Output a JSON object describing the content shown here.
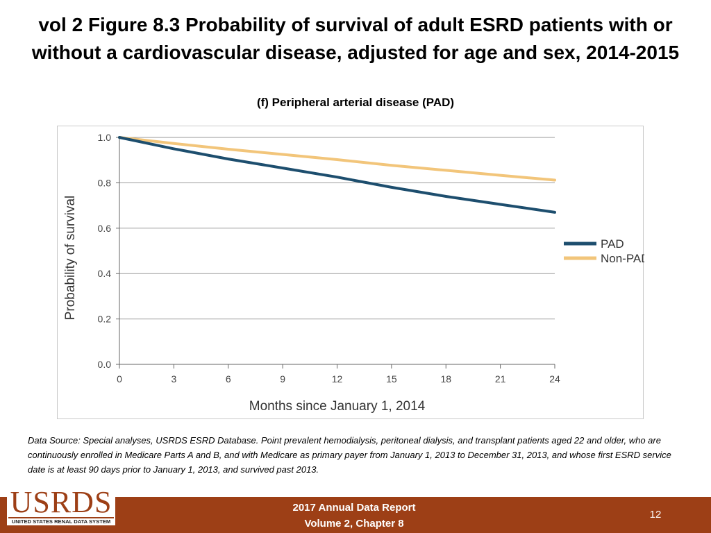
{
  "slide": {
    "title_line1": "vol 2 Figure 8.3 Probability of survival of adult ESRD patients with or",
    "title_line2": "without a cardiovascular disease, adjusted for age and sex, 2014-2015",
    "footnote": "Data Source: Special analyses, USRDS ESRD Database. Point prevalent hemodialysis, peritoneal dialysis, and transplant patients aged 22 and older, who are continuously enrolled in Medicare Parts A and B, and with Medicare as primary payer from January 1, 2013 to December 31, 2013, and whose first ESRD service date is at least 90 days prior to January 1, 2013, and survived past 2013."
  },
  "footer": {
    "logo_text": "USRDS",
    "logo_subtext": "UNITED STATES RENAL DATA SYSTEM",
    "report_line1": "2017 Annual Data Report",
    "report_line2": "Volume 2, Chapter 8",
    "page_number": "12",
    "band_color": "#9d3f16"
  },
  "chart_data": {
    "type": "line",
    "title": "(f) Peripheral arterial disease (PAD)",
    "xlabel": "Months since January 1, 2014",
    "ylabel": "Probability of survival",
    "xlim": [
      0,
      24
    ],
    "ylim": [
      0,
      1.0
    ],
    "x_ticks": [
      0,
      3,
      6,
      9,
      12,
      15,
      18,
      21,
      24
    ],
    "x_tick_labels": [
      "0",
      "3",
      "6",
      "9",
      "12",
      "15",
      "18",
      "21",
      "24"
    ],
    "y_ticks": [
      0,
      0.2,
      0.4,
      0.6,
      0.8,
      1.0
    ],
    "y_tick_labels": [
      "0.0",
      "0.2",
      "0.4",
      "0.6",
      "0.8",
      "1.0"
    ],
    "grid": true,
    "legend_position": "right",
    "x": [
      0,
      3,
      6,
      9,
      12,
      15,
      18,
      21,
      24
    ],
    "series": [
      {
        "name": "PAD",
        "color": "#1d4e6e",
        "values": [
          1.0,
          0.95,
          0.905,
          0.865,
          0.825,
          0.78,
          0.74,
          0.705,
          0.67
        ]
      },
      {
        "name": "Non-PAD",
        "color": "#f2c57a",
        "values": [
          1.0,
          0.973,
          0.948,
          0.925,
          0.902,
          0.877,
          0.855,
          0.833,
          0.812
        ]
      }
    ]
  }
}
